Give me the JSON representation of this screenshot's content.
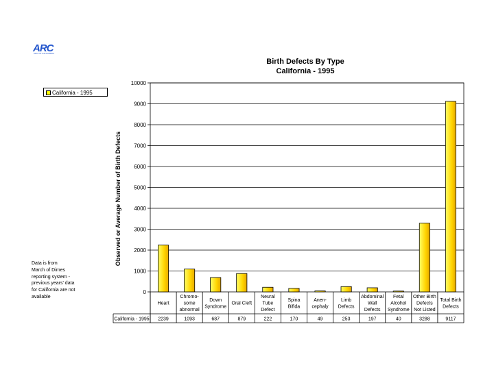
{
  "logo": {
    "text": "ARC",
    "subtext": "ARC OF CALIFORNIA"
  },
  "note": [
    "Data is from",
    "March of Dimes",
    "reporting system -",
    "previous  years' data",
    "for California are not",
    "available"
  ],
  "chart_data": {
    "type": "bar",
    "title": "Birth Defects By Type",
    "subtitle": "California - 1995",
    "ylabel": "Observed or Average Number of Birth Defects",
    "xlabel": "",
    "ylim": [
      0,
      10000
    ],
    "yticks": [
      0,
      1000,
      2000,
      3000,
      4000,
      5000,
      6000,
      7000,
      8000,
      9000,
      10000
    ],
    "grid": true,
    "legend_position": "left",
    "bar_color": "#ffcc00",
    "categories": [
      [
        "Heart"
      ],
      [
        "Chromo-",
        "some",
        "abnormal"
      ],
      [
        "Down",
        "Syndrome"
      ],
      [
        "Oral Cleft"
      ],
      [
        "Neural",
        "Tube",
        "Defect"
      ],
      [
        "Spina",
        "Bifida"
      ],
      [
        "Anen-",
        "cephaly"
      ],
      [
        "Limb",
        "Defects"
      ],
      [
        "Abdominal",
        "Wall",
        "Defects"
      ],
      [
        "Fetal",
        "Alcohol",
        "Syndrome"
      ],
      [
        "Other Birth",
        "Defects",
        "Not Listed"
      ],
      [
        "Total Birth",
        "Defects"
      ]
    ],
    "series": [
      {
        "name": "California - 1995",
        "values": [
          2239,
          1093,
          687,
          879,
          222,
          170,
          49,
          253,
          197,
          40,
          3288,
          9117
        ]
      }
    ]
  }
}
